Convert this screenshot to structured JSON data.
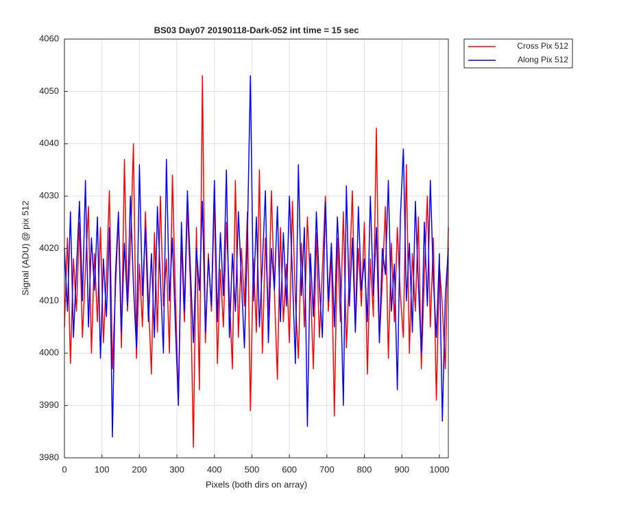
{
  "chart_data": {
    "type": "line",
    "title": "BS03 Day07 20190118-Dark-052 int time = 15 sec",
    "xlabel": "Pixels (both dirs on array)",
    "ylabel": "Signal (ADU) @ pix 512",
    "x": [
      0,
      8,
      16,
      24,
      32,
      40,
      48,
      56,
      64,
      72,
      80,
      88,
      96,
      104,
      112,
      120,
      128,
      136,
      144,
      152,
      160,
      168,
      176,
      184,
      192,
      200,
      208,
      216,
      224,
      232,
      240,
      248,
      256,
      264,
      272,
      280,
      288,
      296,
      304,
      312,
      320,
      328,
      336,
      344,
      352,
      360,
      368,
      376,
      384,
      392,
      400,
      408,
      416,
      424,
      432,
      440,
      448,
      456,
      464,
      472,
      480,
      488,
      496,
      504,
      512,
      520,
      528,
      536,
      544,
      552,
      560,
      568,
      576,
      584,
      592,
      600,
      608,
      616,
      624,
      632,
      640,
      648,
      656,
      664,
      672,
      680,
      688,
      696,
      704,
      712,
      720,
      728,
      736,
      744,
      752,
      760,
      768,
      776,
      784,
      792,
      800,
      808,
      816,
      824,
      832,
      840,
      848,
      856,
      864,
      872,
      880,
      888,
      896,
      904,
      912,
      920,
      928,
      936,
      944,
      952,
      960,
      968,
      976,
      984,
      992,
      1000,
      1008,
      1016,
      1024
    ],
    "series": [
      {
        "name": "Cross Pix 512",
        "color": "#ff0000",
        "values": [
          4005,
          4022,
          3998,
          4018,
          4008,
          4025,
          4003,
          4016,
          4028,
          4000,
          4019,
          4006,
          4024,
          4002,
          4015,
          4031,
          3997,
          4012,
          4026,
          4001,
          4037,
          4008,
          4020,
          4040,
          3999,
          4017,
          4005,
          4027,
          4010,
          3996,
          4023,
          4004,
          4030,
          4009,
          4018,
          4000,
          4034,
          4011,
          3991,
          4021,
          4006,
          4028,
          4013,
          3982,
          4024,
          3993,
          4053,
          4002,
          4019,
          4008,
          4030,
          3998,
          4016,
          4005,
          4025,
          4011,
          3997,
          4033,
          4003,
          4020,
          4009,
          4027,
          3989,
          4018,
          4004,
          4035,
          4000,
          4022,
          4007,
          4031,
          4012,
          3995,
          4024,
          4006,
          4017,
          4002,
          4029,
          4010,
          3999,
          4021,
          4005,
          4026,
          4013,
          3997,
          4023,
          4003,
          4016,
          4030,
          4008,
          4019,
          3988,
          4022,
          4006,
          4027,
          4001,
          4015,
          4031,
          4004,
          4020,
          4009,
          4025,
          3996,
          4018,
          4007,
          4043,
          4002,
          4014,
          4028,
          3999,
          4021,
          4006,
          4024,
          4011,
          4003,
          4036,
          4000,
          4019,
          4008,
          4026,
          3997,
          4015,
          4030,
          4005,
          4022,
          3991,
          4017,
          4009,
          3997,
          4024
        ]
      },
      {
        "name": "Along Pix 512",
        "color": "#0000ff",
        "values": [
          4020,
          4008,
          4027,
          4003,
          4016,
          4029,
          4010,
          4033,
          4005,
          4022,
          4012,
          4026,
          3999,
          4018,
          4007,
          4024,
          3984,
          4015,
          4027,
          4004,
          4021,
          4009,
          4030,
          4013,
          4001,
          4036,
          4011,
          4024,
          4006,
          4019,
          4003,
          4028,
          4014,
          4000,
          4037,
          4010,
          4022,
          4005,
          3990,
          4025,
          4008,
          4031,
          4016,
          4002,
          4020,
          4012,
          4029,
          4004,
          4018,
          4009,
          4033,
          4006,
          4023,
          4011,
          4035,
          4003,
          4019,
          4008,
          4027,
          4014,
          4001,
          4022,
          4053,
          4010,
          4026,
          4005,
          4017,
          4031,
          4002,
          4020,
          4012,
          4028,
          4006,
          4023,
          4009,
          4030,
          4015,
          3998,
          4036,
          4011,
          4024,
          3986,
          4019,
          4007,
          4027,
          4013,
          4003,
          4029,
          4010,
          4021,
          4005,
          4026,
          4014,
          3990,
          4032,
          4009,
          4022,
          4004,
          4028,
          4012,
          4018,
          4006,
          4030,
          4011,
          4024,
          4002,
          4020,
          4015,
          4033,
          4008,
          4017,
          3993,
          4026,
          4039,
          4010,
          4021,
          4004,
          4029,
          4013,
          4000,
          4025,
          4009,
          4033,
          4014,
          4003,
          4019,
          3987,
          4011,
          4020
        ]
      }
    ],
    "xlim": [
      0,
      1024
    ],
    "ylim": [
      3980,
      4060
    ],
    "xticks": [
      0,
      100,
      200,
      300,
      400,
      500,
      600,
      700,
      800,
      900,
      1000
    ],
    "yticks": [
      3980,
      3990,
      4000,
      4010,
      4020,
      4030,
      4040,
      4050,
      4060
    ],
    "grid": true,
    "legend": "northeastoutside"
  }
}
